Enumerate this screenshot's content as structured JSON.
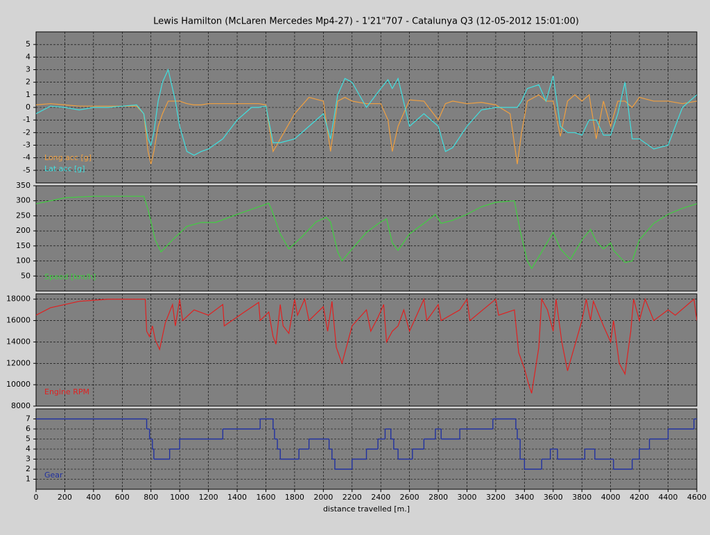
{
  "title": "Lewis Hamilton (McLaren Mercedes Mp4-27) - 1'21\"707 - Catalunya Q3 (12-05-2012 15:01:00)",
  "chart_data": [
    {
      "type": "line",
      "xlim": [
        0,
        4600
      ],
      "ylim": [
        -6,
        6
      ],
      "yticks": [
        -5,
        -4,
        -3,
        -2,
        -1,
        0,
        1,
        2,
        3,
        4,
        5
      ],
      "grid": true,
      "x": [
        0,
        100,
        200,
        300,
        400,
        500,
        600,
        700,
        750,
        780,
        800,
        820,
        850,
        880,
        920,
        970,
        1000,
        1050,
        1100,
        1150,
        1200,
        1300,
        1400,
        1500,
        1550,
        1600,
        1650,
        1700,
        1800,
        1900,
        2000,
        2050,
        2100,
        2150,
        2200,
        2300,
        2400,
        2450,
        2480,
        2520,
        2600,
        2700,
        2800,
        2850,
        2900,
        3000,
        3100,
        3200,
        3300,
        3350,
        3380,
        3420,
        3500,
        3550,
        3600,
        3650,
        3700,
        3750,
        3800,
        3850,
        3900,
        3950,
        4000,
        4050,
        4100,
        4150,
        4200,
        4300,
        4400,
        4500,
        4600
      ],
      "series": [
        {
          "name": "Long acc [g]",
          "color": "#f0a040",
          "values": [
            0.2,
            0.3,
            0.2,
            0.1,
            0.1,
            0.1,
            0.1,
            0.1,
            -0.5,
            -3.5,
            -4.5,
            -3.5,
            -1.5,
            -0.5,
            0.5,
            0.5,
            0.5,
            0.3,
            0.2,
            0.2,
            0.3,
            0.3,
            0.3,
            0.3,
            0.3,
            0.2,
            -3.5,
            -2.5,
            -0.5,
            0.8,
            0.5,
            -3.5,
            0.5,
            0.8,
            0.5,
            0.3,
            0.3,
            -1,
            -3.5,
            -1.5,
            0.6,
            0.5,
            -1,
            0.3,
            0.5,
            0.3,
            0.4,
            0.2,
            -0.5,
            -4.5,
            -2,
            0.5,
            1,
            0.5,
            0.5,
            -2.3,
            0.5,
            1,
            0.5,
            1,
            -2.5,
            0.5,
            -1.5,
            0.5,
            0.5,
            0,
            0.8,
            0.5,
            0.5,
            0.3,
            0.5
          ]
        },
        {
          "name": "Lat acc [g]",
          "color": "#40e0e0",
          "values": [
            -0.5,
            0.1,
            0,
            -0.2,
            0,
            0,
            0.1,
            0.2,
            -0.5,
            -2.5,
            -3,
            -2,
            0.5,
            2,
            3,
            0.5,
            -1.5,
            -3.5,
            -3.8,
            -3.5,
            -3.3,
            -2.5,
            -1,
            0,
            0,
            0.1,
            -2.8,
            -2.8,
            -2.5,
            -1.5,
            -0.5,
            -2.5,
            1,
            2.3,
            2,
            0,
            1.5,
            2.2,
            1.5,
            2.3,
            -1.5,
            -0.5,
            -1.5,
            -3.5,
            -3.2,
            -1.5,
            -0.2,
            0,
            0,
            0,
            0.5,
            1.5,
            1.8,
            0.5,
            2.5,
            -1.5,
            -2,
            -2,
            -2.2,
            -1,
            -1,
            -2.2,
            -2.2,
            -0.5,
            2,
            -2.5,
            -2.5,
            -3.3,
            -3,
            0,
            1
          ]
        }
      ]
    },
    {
      "type": "line",
      "xlim": [
        0,
        4600
      ],
      "ylim": [
        0,
        350
      ],
      "yticks": [
        50,
        100,
        150,
        200,
        250,
        300,
        350
      ],
      "grid": true,
      "x": [
        0,
        200,
        400,
        600,
        750,
        780,
        830,
        870,
        950,
        1050,
        1150,
        1250,
        1400,
        1550,
        1620,
        1640,
        1700,
        1760,
        1850,
        1950,
        2020,
        2050,
        2100,
        2130,
        2200,
        2300,
        2400,
        2440,
        2480,
        2520,
        2600,
        2700,
        2780,
        2820,
        2900,
        3000,
        3100,
        3200,
        3330,
        3370,
        3420,
        3450,
        3520,
        3600,
        3650,
        3720,
        3800,
        3860,
        3900,
        3950,
        4000,
        4020,
        4070,
        4100,
        4150,
        4200,
        4300,
        4400,
        4500,
        4600
      ],
      "series": [
        {
          "name": "Speed [km/h]",
          "color": "#40d040",
          "values": [
            290,
            310,
            315,
            315,
            315,
            270,
            170,
            130,
            170,
            215,
            228,
            228,
            255,
            280,
            292,
            270,
            190,
            140,
            180,
            230,
            245,
            230,
            130,
            100,
            140,
            195,
            230,
            240,
            160,
            135,
            190,
            225,
            255,
            225,
            235,
            255,
            280,
            295,
            300,
            200,
            100,
            75,
            130,
            195,
            140,
            105,
            170,
            205,
            165,
            140,
            160,
            135,
            110,
            95,
            100,
            170,
            225,
            255,
            275,
            290
          ]
        }
      ]
    },
    {
      "type": "line",
      "xlim": [
        0,
        4600
      ],
      "ylim": [
        8000,
        18500
      ],
      "yticks": [
        8000,
        10000,
        12000,
        14000,
        16000,
        18000
      ],
      "grid": true,
      "x": [
        0,
        100,
        300,
        500,
        760,
        770,
        790,
        810,
        830,
        860,
        900,
        950,
        970,
        1000,
        1020,
        1100,
        1200,
        1300,
        1310,
        1450,
        1550,
        1560,
        1620,
        1650,
        1670,
        1700,
        1720,
        1760,
        1800,
        1820,
        1870,
        1900,
        2000,
        2030,
        2060,
        2090,
        2130,
        2200,
        2300,
        2330,
        2380,
        2420,
        2440,
        2480,
        2520,
        2560,
        2600,
        2700,
        2720,
        2800,
        2820,
        2950,
        3000,
        3020,
        3200,
        3220,
        3330,
        3360,
        3400,
        3430,
        3450,
        3500,
        3520,
        3560,
        3600,
        3620,
        3660,
        3700,
        3800,
        3830,
        3860,
        3880,
        3950,
        4000,
        4020,
        4060,
        4100,
        4140,
        4160,
        4200,
        4240,
        4300,
        4400,
        4450,
        4580,
        4600
      ],
      "series": [
        {
          "name": "Engine RPM",
          "color": "#e02020",
          "values": [
            16500,
            17200,
            17800,
            18000,
            18000,
            15000,
            14500,
            15500,
            14200,
            13300,
            15800,
            17500,
            15500,
            18000,
            16000,
            17000,
            16500,
            17500,
            15500,
            16800,
            17700,
            16000,
            16800,
            14500,
            13800,
            17500,
            15500,
            14800,
            18000,
            16500,
            18000,
            16000,
            17300,
            15000,
            17800,
            13500,
            12000,
            15500,
            17000,
            15000,
            16300,
            17500,
            14000,
            15000,
            15500,
            17000,
            15000,
            18000,
            16000,
            17500,
            16000,
            17000,
            18000,
            16000,
            18000,
            16500,
            17000,
            13000,
            11500,
            10000,
            9200,
            13500,
            18000,
            17000,
            15000,
            18000,
            14000,
            11300,
            16000,
            18000,
            16000,
            17800,
            15500,
            14000,
            16000,
            12000,
            11000,
            15000,
            18000,
            16000,
            18000,
            16000,
            17000,
            16500,
            18000,
            16000
          ]
        }
      ]
    },
    {
      "type": "step",
      "xlim": [
        0,
        4600
      ],
      "ylim": [
        0,
        8
      ],
      "yticks": [
        1,
        2,
        3,
        4,
        5,
        6,
        7
      ],
      "grid": true,
      "xticks": [
        0,
        200,
        400,
        600,
        800,
        1000,
        1200,
        1400,
        1600,
        1800,
        2000,
        2200,
        2400,
        2600,
        2800,
        3000,
        3200,
        3400,
        3600,
        3800,
        4000,
        4200,
        4400,
        4600
      ],
      "xlabel": "distance travelled [m.]",
      "x": [
        0,
        770,
        790,
        810,
        820,
        930,
        1000,
        1300,
        1560,
        1650,
        1660,
        1680,
        1700,
        1830,
        1900,
        2040,
        2060,
        2080,
        2200,
        2300,
        2380,
        2430,
        2470,
        2490,
        2520,
        2620,
        2700,
        2780,
        2820,
        2950,
        3180,
        3340,
        3350,
        3370,
        3400,
        3520,
        3580,
        3630,
        3820,
        3890,
        4020,
        4150,
        4200,
        4270,
        4400,
        4580,
        4600
      ],
      "series": [
        {
          "name": "Gear",
          "color": "#2030a0",
          "values": [
            7,
            6,
            5,
            4,
            3,
            4,
            5,
            6,
            7,
            6,
            5,
            4,
            3,
            4,
            5,
            4,
            3,
            2,
            3,
            4,
            5,
            6,
            5,
            4,
            3,
            4,
            5,
            6,
            5,
            6,
            7,
            6,
            5,
            3,
            2,
            3,
            4,
            3,
            4,
            3,
            2,
            3,
            4,
            5,
            6,
            7,
            7
          ]
        }
      ]
    }
  ]
}
